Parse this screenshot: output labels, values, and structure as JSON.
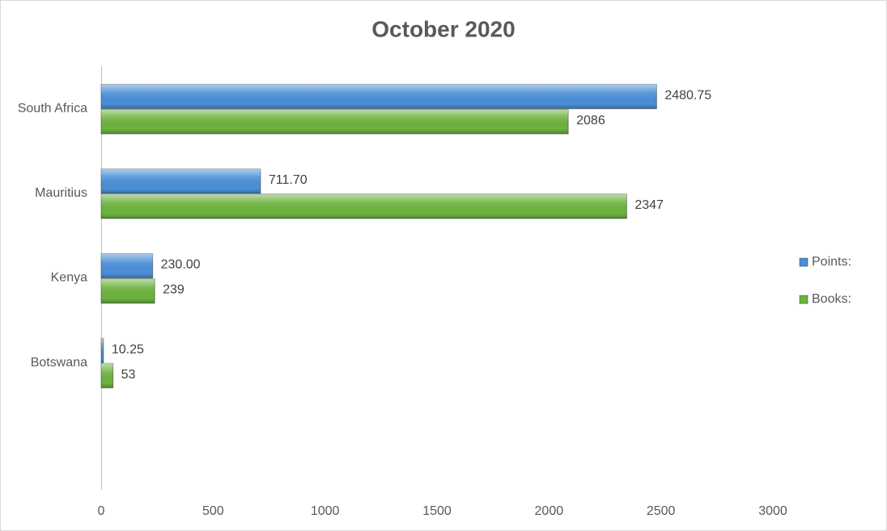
{
  "chart_data": {
    "type": "bar",
    "orientation": "horizontal",
    "title": "October 2020",
    "categories": [
      "South Africa",
      "Mauritius",
      "Kenya",
      "Botswana",
      null
    ],
    "series": [
      {
        "name": "Points:",
        "color": "#4a8fd8",
        "values": [
          2480.75,
          711.7,
          230.0,
          10.25,
          null
        ],
        "value_labels": [
          "2480.75",
          "711.70",
          "230.00",
          "10.25",
          null
        ]
      },
      {
        "name": "Books:",
        "color": "#6db33f",
        "values": [
          2086,
          2347,
          239,
          53,
          null
        ]
      }
    ],
    "xlim": [
      0,
      3000
    ],
    "xticks": [
      0,
      500,
      1000,
      1500,
      2000,
      2500,
      3000
    ],
    "grid": false,
    "legend": "right"
  }
}
